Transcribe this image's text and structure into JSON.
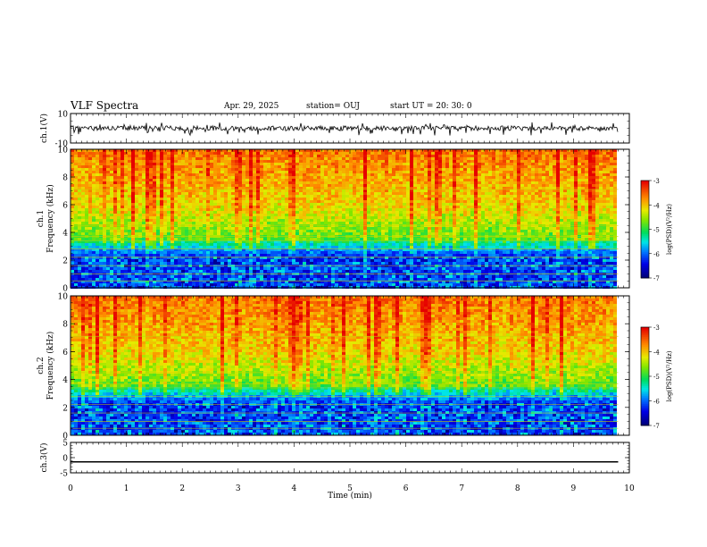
{
  "header": {
    "title": "VLF Spectra",
    "date": "Apr. 29, 2025",
    "station": "station= OUJ",
    "start": "start  UT =   20: 30: 0"
  },
  "chart_data": [
    {
      "type": "line",
      "panel": "channel 1 waveform",
      "ylabel": "ch.1(V)",
      "ylim": [
        -10,
        10
      ],
      "yticks": [
        "10",
        "-10"
      ],
      "xlim": [
        0,
        10
      ],
      "trace": {
        "baseline": 0,
        "typical_range": [
          -2,
          2
        ],
        "spikes_to": [
          -5,
          4
        ],
        "color": "#000000"
      }
    },
    {
      "type": "heatmap",
      "panel": "channel 1 spectrogram",
      "ylabel": "ch.1\nFrequency (kHz)",
      "ylim": [
        0,
        10
      ],
      "yticks": [
        "0",
        "2",
        "4",
        "6",
        "8",
        "10"
      ],
      "xlim": [
        0,
        10
      ],
      "data_extent_min": 9.8,
      "colorbar": {
        "label": "log(PSD)(V²/Hz)",
        "ticks": [
          "-3",
          "-4",
          "-5",
          "-6",
          "-7"
        ],
        "range": [
          -7,
          -3
        ]
      }
    },
    {
      "type": "heatmap",
      "panel": "channel 2 spectrogram",
      "ylabel": "ch.2\nFrequency (kHz)",
      "ylim": [
        0,
        10
      ],
      "yticks": [
        "0",
        "2",
        "4",
        "6",
        "8",
        "10"
      ],
      "xlim": [
        0,
        10
      ],
      "data_extent_min": 9.8,
      "colorbar": {
        "label": "log(PSD)(V²/Hz)",
        "ticks": [
          "-3",
          "-4",
          "-5",
          "-6",
          "-7"
        ],
        "range": [
          -7,
          -3
        ]
      }
    },
    {
      "type": "line",
      "panel": "channel 3 waveform",
      "ylabel": "ch.3(V)",
      "ylim": [
        -5,
        5
      ],
      "yticks": [
        "5",
        "0",
        "-5"
      ],
      "xlim": [
        0,
        10
      ],
      "trace": {
        "constant_value": -1.4,
        "color": "#000000"
      }
    }
  ],
  "xaxis": {
    "label": "Time (min)",
    "ticks": [
      "0",
      "1",
      "2",
      "3",
      "4",
      "5",
      "6",
      "7",
      "8",
      "9",
      "10"
    ]
  }
}
